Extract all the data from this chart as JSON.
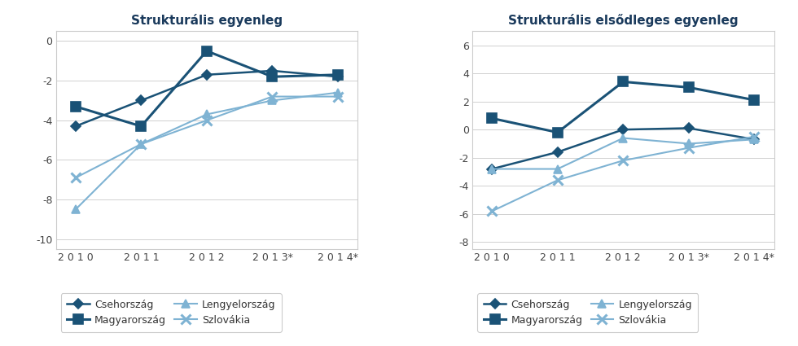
{
  "years": [
    "2010",
    "2011",
    "2012",
    "2013*",
    "2014*"
  ],
  "chart1": {
    "title": "Strukturális egyenleg",
    "ylim": [
      -10.5,
      0.5
    ],
    "yticks": [
      0,
      -2,
      -4,
      -6,
      -8,
      -10
    ],
    "series": {
      "Csehország": [
        -4.3,
        -3.0,
        -1.7,
        -1.5,
        -1.8
      ],
      "Magyarország": [
        -3.3,
        -4.3,
        -0.5,
        -1.8,
        -1.7
      ],
      "Lengyelország": [
        -8.5,
        -5.2,
        -3.7,
        -3.0,
        -2.6
      ],
      "Szlovákia": [
        -6.9,
        -5.2,
        -4.0,
        -2.8,
        -2.8
      ]
    }
  },
  "chart2": {
    "title": "Strukturális elsődleges egyenleg",
    "ylim": [
      -8.5,
      7.0
    ],
    "yticks": [
      6,
      4,
      2,
      0,
      -2,
      -4,
      -6,
      -8
    ],
    "series": {
      "Csehország": [
        -2.8,
        -1.6,
        0.0,
        0.1,
        -0.7
      ],
      "Magyarország": [
        0.8,
        -0.2,
        3.4,
        3.0,
        2.1
      ],
      "Lengyelország": [
        -2.8,
        -2.8,
        -0.6,
        -1.0,
        -0.7
      ],
      "Szlovákia": [
        -5.8,
        -3.6,
        -2.2,
        -1.3,
        -0.5
      ]
    }
  },
  "legend_labels": [
    "Csehország",
    "Magyarország",
    "Lengyelország",
    "Szlovákia"
  ],
  "line_styles": {
    "Csehország": {
      "color": "#1a5276",
      "marker": "D",
      "linestyle": "-",
      "linewidth": 1.8,
      "markersize": 6
    },
    "Magyarország": {
      "color": "#1a5276",
      "marker": "s",
      "linestyle": "-",
      "linewidth": 2.2,
      "markersize": 8
    },
    "Lengyelország": {
      "color": "#7fb3d3",
      "marker": "^",
      "linestyle": "-",
      "linewidth": 1.5,
      "markersize": 7
    },
    "Szlovákia": {
      "color": "#7fb3d3",
      "marker": "x",
      "linestyle": "-",
      "linewidth": 1.5,
      "markersize": 8
    }
  },
  "title_fontsize": 11,
  "tick_fontsize": 9,
  "legend_fontsize": 9,
  "background_color": "#ffffff",
  "grid_color": "#d0d0d0"
}
